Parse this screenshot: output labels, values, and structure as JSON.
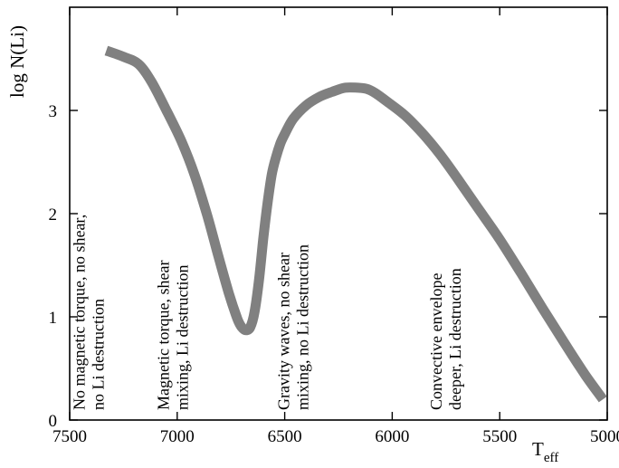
{
  "chart_data": {
    "type": "line",
    "title": "",
    "xlabel": "T",
    "xlabel_subscript": "eff",
    "ylabel": "log N(Li)",
    "xlim": [
      7500,
      5000
    ],
    "ylim": [
      0,
      4
    ],
    "x_reversed": true,
    "xticks": [
      7500,
      7000,
      6500,
      6000,
      5500,
      5000
    ],
    "yticks": [
      0,
      1,
      2,
      3
    ],
    "grid": false,
    "legend": "none",
    "series": [
      {
        "color": "#808080",
        "x": [
          7330,
          7250,
          7180,
          7120,
          7050,
          6980,
          6920,
          6860,
          6810,
          6760,
          6720,
          6700,
          6680,
          6660,
          6640,
          6620,
          6600,
          6580,
          6560,
          6540,
          6520,
          6500,
          6460,
          6400,
          6340,
          6280,
          6220,
          6160,
          6120,
          6080,
          6020,
          5940,
          5860,
          5780,
          5700,
          5600,
          5500,
          5400,
          5300,
          5200,
          5100,
          5020
        ],
        "values": [
          3.58,
          3.52,
          3.45,
          3.28,
          3.0,
          2.7,
          2.38,
          1.98,
          1.6,
          1.23,
          0.98,
          0.9,
          0.87,
          0.9,
          1.05,
          1.35,
          1.75,
          2.1,
          2.38,
          2.55,
          2.68,
          2.77,
          2.92,
          3.05,
          3.13,
          3.18,
          3.22,
          3.22,
          3.21,
          3.17,
          3.08,
          2.95,
          2.78,
          2.58,
          2.35,
          2.05,
          1.75,
          1.42,
          1.08,
          0.75,
          0.43,
          0.2
        ]
      }
    ],
    "annotations": [
      {
        "x": 7430,
        "lines": [
          "No magnetic torque, no shear,",
          "no Li destruction"
        ]
      },
      {
        "x": 7040,
        "lines": [
          "Magnetic torque, shear",
          "mixing, Li destruction"
        ]
      },
      {
        "x": 6480,
        "lines": [
          "Gravity waves, no shear",
          "mixing, no Li destruction"
        ]
      },
      {
        "x": 5770,
        "lines": [
          "Convective envelope",
          "deeper, Li destruction"
        ]
      }
    ]
  }
}
